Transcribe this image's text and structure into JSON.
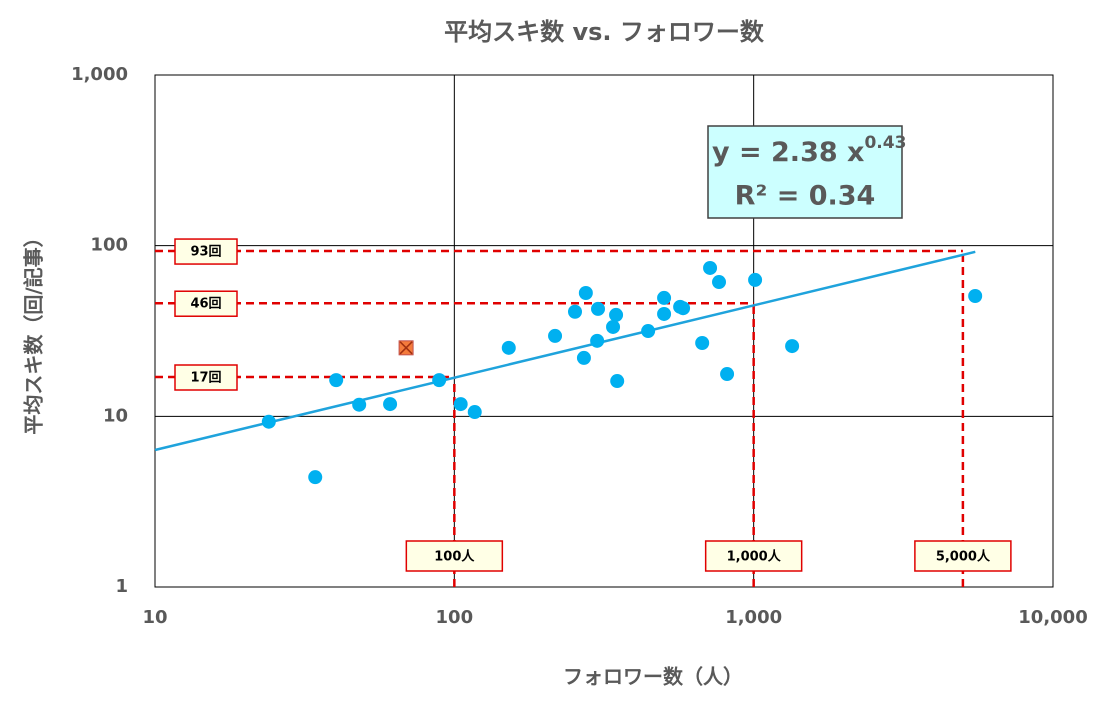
{
  "chart_data": {
    "type": "scatter",
    "title": "平均スキ数 vs. フォロワー数",
    "x_label": "フォロワー数（人）",
    "y_label": "平均スキ数（回/記事）",
    "log_x": true,
    "log_y": true,
    "grid": true,
    "xlim": [
      10,
      10000
    ],
    "xticks": [
      10,
      100,
      {
        "value": 1000,
        "label": "1,000"
      },
      {
        "value": 10000,
        "label": "10,000"
      }
    ],
    "ylim": [
      1,
      1000
    ],
    "yticks": [
      1,
      10,
      100,
      {
        "value": 1000,
        "label": "1,000"
      }
    ],
    "series": [
      {
        "color": "#00b0f0",
        "marker": "circle",
        "x": [
          24,
          34.3,
          40.3,
          48.1,
          61,
          89,
          105,
          117,
          152,
          217,
          253,
          275,
          271,
          302,
          300,
          339,
          347,
          350,
          444,
          502,
          502,
          568,
          581,
          673,
          715,
          766,
          815,
          1011,
          1344,
          5496
        ],
        "values": [
          9.3,
          4.4,
          16.3,
          11.7,
          11.8,
          16.3,
          11.8,
          10.6,
          25.2,
          29.6,
          41,
          52.8,
          22,
          42.6,
          27.7,
          33.4,
          39.3,
          16.1,
          31.6,
          49.4,
          39.8,
          43.8,
          43,
          26.9,
          74,
          61.2,
          17.7,
          63,
          25.8,
          50.7
        ]
      },
      {
        "color": "#f47b3c",
        "marker": "x-square",
        "x": [
          69
        ],
        "values": [
          25.2
        ]
      }
    ],
    "trendline": {
      "color": "#1fa3dc",
      "x": [
        10,
        5500
      ],
      "values": [
        6.35,
        92
      ]
    },
    "equation": {
      "formula": "y = 2.38 x",
      "exponent": "0.43",
      "r_squared": "R² = 0.34"
    },
    "guides": [
      {
        "x": 100,
        "y": 17,
        "x_label": "100人",
        "y_label": "17回"
      },
      {
        "x": 1000,
        "y": 46,
        "x_label": "1,000人",
        "y_label": "46回"
      },
      {
        "x": 5000,
        "y": 93,
        "x_label": "5,000人",
        "y_label": "93回"
      }
    ]
  }
}
